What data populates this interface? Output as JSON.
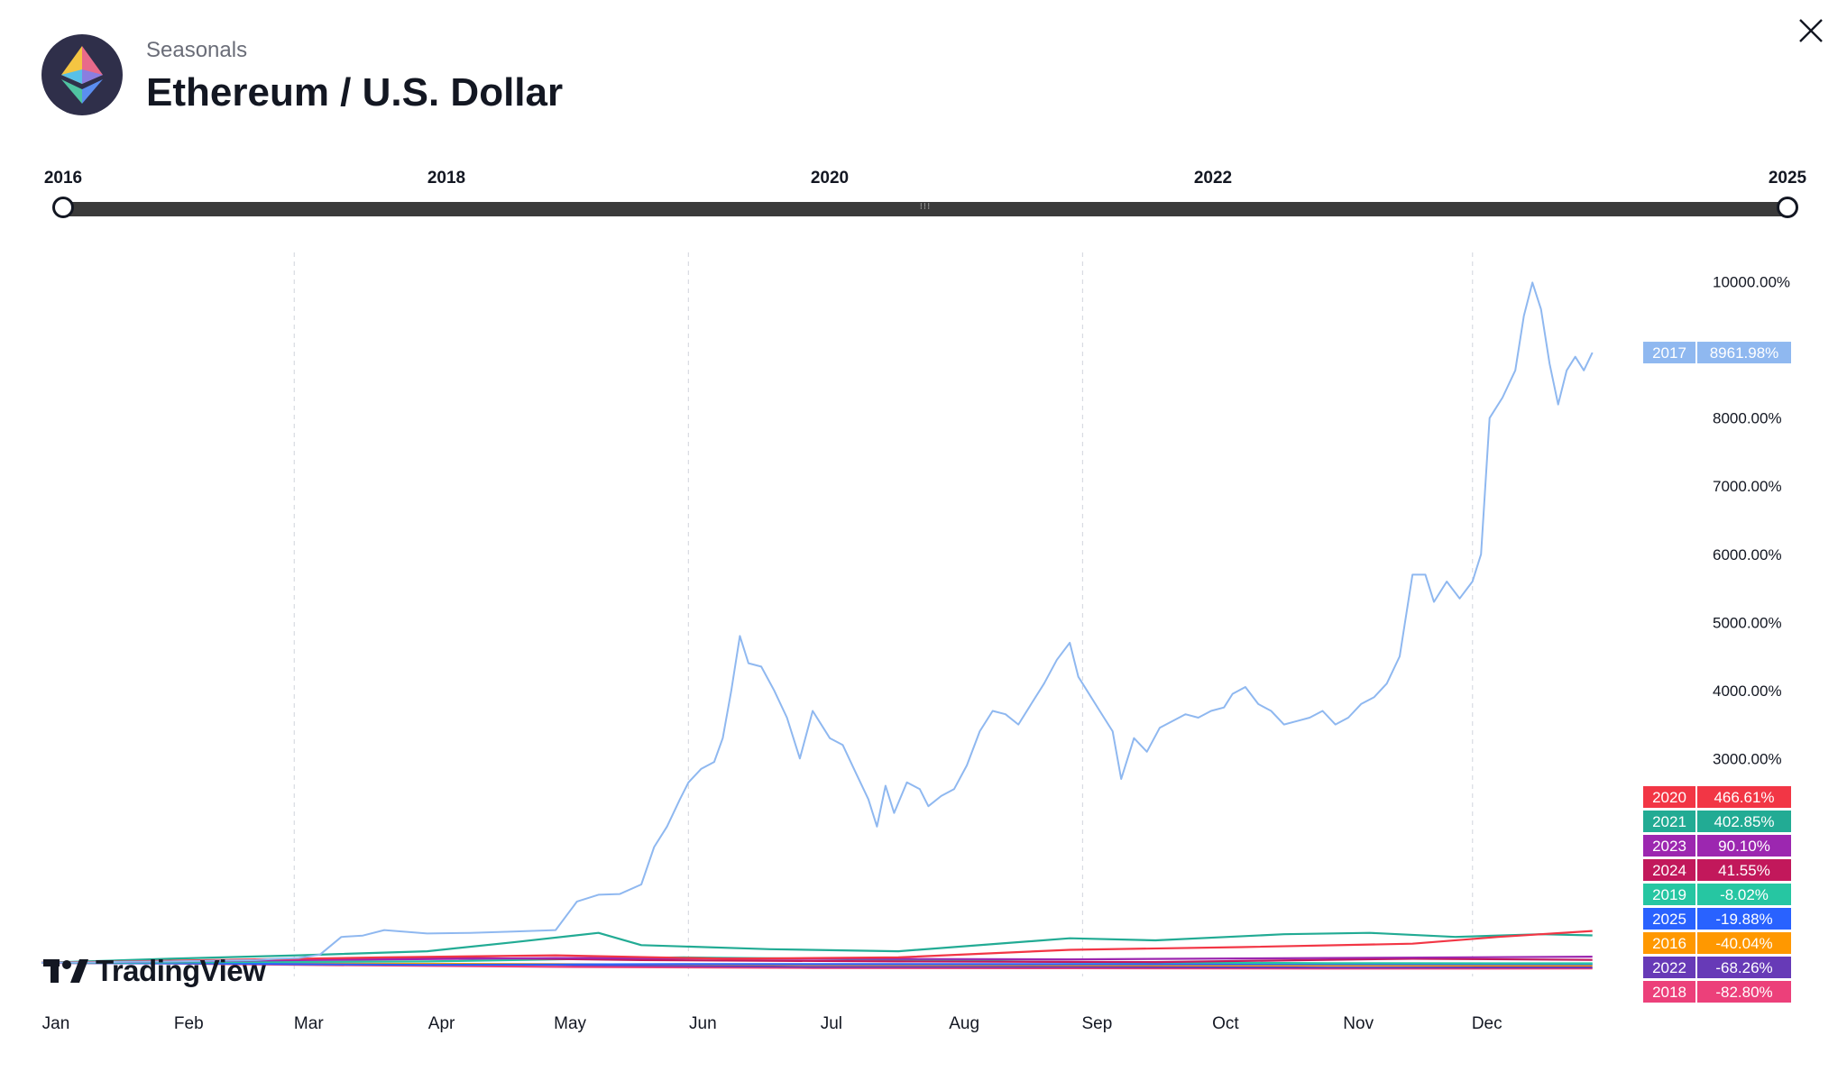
{
  "header": {
    "subtitle": "Seasonals",
    "title": "Ethereum / U.S. Dollar"
  },
  "range": {
    "labels": [
      "2016",
      "2018",
      "2020",
      "2022",
      "2025"
    ],
    "start_year": "2016",
    "end_year": "2025"
  },
  "branding": {
    "logo_text": "TradingView"
  },
  "icons": {
    "logo": "ethereum-icon",
    "close": "close-icon"
  },
  "chart_data": {
    "type": "line",
    "x_axis": {
      "labels": [
        "Jan",
        "Feb",
        "Mar",
        "Apr",
        "May",
        "Jun",
        "Jul",
        "Aug",
        "Sep",
        "Oct",
        "Nov",
        "Dec"
      ],
      "range": [
        "Jan 1",
        "Dec 31"
      ]
    },
    "y_axis": {
      "tick_labels": [
        "10000.00%",
        "8000.00%",
        "7000.00%",
        "6000.00%",
        "5000.00%",
        "4000.00%",
        "3000.00%"
      ],
      "ticks": [
        10000,
        8000,
        7000,
        6000,
        5000,
        4000,
        3000
      ],
      "range": [
        -200,
        10300
      ],
      "unit": "%"
    },
    "grid": "vertical-dashed",
    "series": [
      {
        "name": "2017",
        "color": "#8fb8f0",
        "final_label": "8961.98%",
        "points": [
          [
            0,
            0
          ],
          [
            10,
            5
          ],
          [
            20,
            15
          ],
          [
            30,
            20
          ],
          [
            40,
            30
          ],
          [
            50,
            40
          ],
          [
            55,
            60
          ],
          [
            60,
            70
          ],
          [
            65,
            120
          ],
          [
            70,
            380
          ],
          [
            75,
            400
          ],
          [
            80,
            480
          ],
          [
            90,
            430
          ],
          [
            100,
            440
          ],
          [
            110,
            460
          ],
          [
            120,
            480
          ],
          [
            125,
            900
          ],
          [
            130,
            1000
          ],
          [
            135,
            1010
          ],
          [
            140,
            1150
          ],
          [
            143,
            1700
          ],
          [
            146,
            2000
          ],
          [
            149,
            2400
          ],
          [
            151,
            2650
          ],
          [
            154,
            2850
          ],
          [
            157,
            2950
          ],
          [
            159,
            3300
          ],
          [
            161,
            4000
          ],
          [
            163,
            4800
          ],
          [
            165,
            4400
          ],
          [
            168,
            4350
          ],
          [
            171,
            4000
          ],
          [
            174,
            3600
          ],
          [
            177,
            3000
          ],
          [
            180,
            3700
          ],
          [
            184,
            3300
          ],
          [
            187,
            3200
          ],
          [
            190,
            2800
          ],
          [
            193,
            2400
          ],
          [
            195,
            2000
          ],
          [
            197,
            2600
          ],
          [
            199,
            2200
          ],
          [
            202,
            2650
          ],
          [
            205,
            2550
          ],
          [
            207,
            2300
          ],
          [
            210,
            2450
          ],
          [
            213,
            2550
          ],
          [
            216,
            2900
          ],
          [
            219,
            3400
          ],
          [
            222,
            3700
          ],
          [
            225,
            3650
          ],
          [
            228,
            3500
          ],
          [
            231,
            3800
          ],
          [
            234,
            4100
          ],
          [
            237,
            4450
          ],
          [
            240,
            4700
          ],
          [
            242,
            4200
          ],
          [
            244,
            4000
          ],
          [
            247,
            3700
          ],
          [
            250,
            3400
          ],
          [
            252,
            2700
          ],
          [
            255,
            3300
          ],
          [
            258,
            3100
          ],
          [
            261,
            3450
          ],
          [
            264,
            3550
          ],
          [
            267,
            3650
          ],
          [
            270,
            3600
          ],
          [
            273,
            3700
          ],
          [
            276,
            3750
          ],
          [
            278,
            3950
          ],
          [
            281,
            4050
          ],
          [
            284,
            3800
          ],
          [
            287,
            3700
          ],
          [
            290,
            3500
          ],
          [
            293,
            3550
          ],
          [
            296,
            3600
          ],
          [
            299,
            3700
          ],
          [
            302,
            3500
          ],
          [
            305,
            3600
          ],
          [
            308,
            3800
          ],
          [
            311,
            3900
          ],
          [
            314,
            4100
          ],
          [
            317,
            4500
          ],
          [
            320,
            5700
          ],
          [
            323,
            5700
          ],
          [
            325,
            5300
          ],
          [
            328,
            5600
          ],
          [
            331,
            5350
          ],
          [
            334,
            5600
          ],
          [
            336,
            6000
          ],
          [
            338,
            8000
          ],
          [
            341,
            8300
          ],
          [
            344,
            8700
          ],
          [
            346,
            9500
          ],
          [
            348,
            9990
          ],
          [
            350,
            9600
          ],
          [
            352,
            8800
          ],
          [
            354,
            8200
          ],
          [
            356,
            8700
          ],
          [
            358,
            8900
          ],
          [
            360,
            8700
          ],
          [
            362,
            8962
          ]
        ]
      },
      {
        "name": "2020",
        "color": "#f23645",
        "final_label": "466.61%",
        "points": [
          [
            0,
            0
          ],
          [
            40,
            40
          ],
          [
            80,
            80
          ],
          [
            120,
            110
          ],
          [
            160,
            60
          ],
          [
            200,
            80
          ],
          [
            240,
            190
          ],
          [
            280,
            230
          ],
          [
            320,
            280
          ],
          [
            340,
            380
          ],
          [
            362,
            467
          ]
        ]
      },
      {
        "name": "2021",
        "color": "#22ab94",
        "final_label": "402.85%",
        "points": [
          [
            0,
            0
          ],
          [
            30,
            60
          ],
          [
            60,
            110
          ],
          [
            90,
            170
          ],
          [
            110,
            300
          ],
          [
            130,
            440
          ],
          [
            140,
            260
          ],
          [
            170,
            200
          ],
          [
            200,
            170
          ],
          [
            240,
            360
          ],
          [
            260,
            330
          ],
          [
            290,
            420
          ],
          [
            310,
            440
          ],
          [
            330,
            380
          ],
          [
            350,
            420
          ],
          [
            362,
            403
          ]
        ]
      },
      {
        "name": "2023",
        "color": "#9c27b0",
        "final_label": "90.10%",
        "points": [
          [
            0,
            0
          ],
          [
            60,
            40
          ],
          [
            120,
            70
          ],
          [
            180,
            60
          ],
          [
            240,
            50
          ],
          [
            300,
            70
          ],
          [
            362,
            90
          ]
        ]
      },
      {
        "name": "2024",
        "color": "#c2185b",
        "final_label": "41.55%",
        "points": [
          [
            0,
            0
          ],
          [
            60,
            50
          ],
          [
            90,
            80
          ],
          [
            140,
            40
          ],
          [
            200,
            20
          ],
          [
            260,
            10
          ],
          [
            320,
            60
          ],
          [
            362,
            42
          ]
        ]
      },
      {
        "name": "2019",
        "color": "#26c6a2",
        "final_label": "-8.02%",
        "points": [
          [
            0,
            0
          ],
          [
            90,
            20
          ],
          [
            150,
            80
          ],
          [
            180,
            60
          ],
          [
            240,
            10
          ],
          [
            300,
            -5
          ],
          [
            362,
            -8
          ]
        ]
      },
      {
        "name": "2025",
        "color": "#2962ff",
        "final_label": "-19.88%",
        "points": [
          [
            0,
            0
          ],
          [
            40,
            -10
          ],
          [
            60,
            -20
          ],
          [
            90,
            -30
          ],
          [
            120,
            -25
          ],
          [
            150,
            -20
          ],
          [
            180,
            -20
          ],
          [
            362,
            -20
          ]
        ]
      },
      {
        "name": "2016",
        "color": "#ff9800",
        "final_label": "-40.04%",
        "points": [
          [
            0,
            0
          ],
          [
            60,
            -10
          ],
          [
            120,
            -20
          ],
          [
            180,
            -30
          ],
          [
            240,
            -35
          ],
          [
            300,
            -38
          ],
          [
            362,
            -40
          ]
        ]
      },
      {
        "name": "2022",
        "color": "#673ab7",
        "final_label": "-68.26%",
        "points": [
          [
            0,
            0
          ],
          [
            60,
            -10
          ],
          [
            120,
            -30
          ],
          [
            180,
            -60
          ],
          [
            240,
            -60
          ],
          [
            300,
            -70
          ],
          [
            362,
            -68
          ]
        ]
      },
      {
        "name": "2018",
        "color": "#ec407a",
        "final_label": "-82.80%",
        "points": [
          [
            0,
            0
          ],
          [
            30,
            -10
          ],
          [
            60,
            -30
          ],
          [
            120,
            -60
          ],
          [
            180,
            -75
          ],
          [
            240,
            -80
          ],
          [
            300,
            -85
          ],
          [
            362,
            -83
          ]
        ]
      }
    ]
  }
}
